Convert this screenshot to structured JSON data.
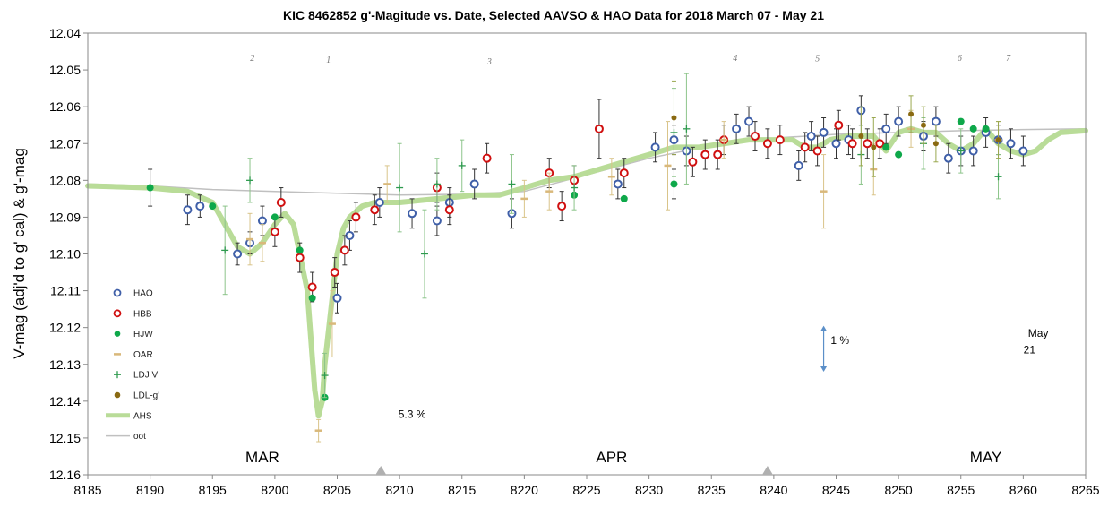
{
  "chart_data": {
    "type": "scatter",
    "title": "KIC 8462852 g'-Magitude vs. Date, Selected AAVSO & HAO Data for 2018 March 07 - May 21",
    "xlabel": "",
    "ylabel": "V-mag (adj'd to g' cal) & g'-mag",
    "xlim": [
      8185,
      8265
    ],
    "ylim": [
      12.04,
      12.16
    ],
    "y_reversed": true,
    "grid": false,
    "legend_position": "left-bottom",
    "x_ticks": [
      "8185",
      "8190",
      "8195",
      "8200",
      "8205",
      "8210",
      "8215",
      "8220",
      "8225",
      "8230",
      "8235",
      "8240",
      "8245",
      "8250",
      "8255",
      "8260",
      "8265"
    ],
    "y_ticks": [
      "12.04",
      "12.05",
      "12.06",
      "12.07",
      "12.08",
      "12.09",
      "12.10",
      "12.11",
      "12.12",
      "12.13",
      "12.14",
      "12.15",
      "12.16"
    ],
    "month_labels": [
      {
        "text": "MAR",
        "x": 8199
      },
      {
        "text": "APR",
        "x": 8227
      },
      {
        "text": "MAY",
        "x": 8257
      }
    ],
    "month_markers": [
      8208.5,
      8239.5
    ],
    "event_labels": [
      {
        "text": "2",
        "x": 8198.2,
        "y": 12.0475
      },
      {
        "text": "1",
        "x": 8204.3,
        "y": 12.048
      },
      {
        "text": "3",
        "x": 8217.2,
        "y": 12.0485
      },
      {
        "text": "4",
        "x": 8236.9,
        "y": 12.0475
      },
      {
        "text": "5",
        "x": 8243.5,
        "y": 12.0477
      },
      {
        "text": "6",
        "x": 8254.9,
        "y": 12.0475
      },
      {
        "text": "7",
        "x": 8258.8,
        "y": 12.0475
      }
    ],
    "annotations": [
      {
        "text": "5.3 %",
        "x": 8211,
        "y": 12.1445
      },
      {
        "text": "1 %",
        "x": 8245.3,
        "y": 12.1245
      },
      {
        "text": "May",
        "x": 8261.2,
        "y": 12.1225
      },
      {
        "text": "21",
        "x": 8260.5,
        "y": 12.127
      }
    ],
    "scale_arrow": {
      "x": 8244,
      "y1": 12.1195,
      "y2": 12.132
    },
    "series": [
      {
        "name": "HAO",
        "marker": "open-circle",
        "color": "#3f5fa8",
        "points": [
          [
            8193,
            12.088,
            0.004
          ],
          [
            8194,
            12.087,
            0.003
          ],
          [
            8197,
            12.1,
            0.003
          ],
          [
            8198,
            12.097,
            0.003
          ],
          [
            8199,
            12.091,
            0.004
          ],
          [
            8205,
            12.112,
            0.004
          ],
          [
            8206,
            12.095,
            0.004
          ],
          [
            8208.4,
            12.086,
            0.004
          ],
          [
            8211,
            12.089,
            0.004
          ],
          [
            8213,
            12.091,
            0.004
          ],
          [
            8214,
            12.086,
            0.004
          ],
          [
            8216,
            12.081,
            0.004
          ],
          [
            8219,
            12.089,
            0.004
          ],
          [
            8227.5,
            12.081,
            0.004
          ],
          [
            8230.5,
            12.071,
            0.004
          ],
          [
            8232,
            12.069,
            0.004
          ],
          [
            8233,
            12.072,
            0.004
          ],
          [
            8237,
            12.066,
            0.004
          ],
          [
            8238,
            12.064,
            0.004
          ],
          [
            8242,
            12.076,
            0.004
          ],
          [
            8243,
            12.068,
            0.004
          ],
          [
            8244,
            12.067,
            0.004
          ],
          [
            8245,
            12.07,
            0.004
          ],
          [
            8246,
            12.069,
            0.004
          ],
          [
            8247,
            12.061,
            0.004
          ],
          [
            8249,
            12.066,
            0.004
          ],
          [
            8250,
            12.064,
            0.004
          ],
          [
            8252,
            12.068,
            0.004
          ],
          [
            8253,
            12.064,
            0.004
          ],
          [
            8254,
            12.074,
            0.004
          ],
          [
            8255,
            12.072,
            0.004
          ],
          [
            8256,
            12.072,
            0.004
          ],
          [
            8257,
            12.067,
            0.004
          ],
          [
            8258,
            12.069,
            0.004
          ],
          [
            8259,
            12.07,
            0.004
          ],
          [
            8260,
            12.072,
            0.004
          ]
        ]
      },
      {
        "name": "HBB",
        "marker": "open-circle",
        "color": "#d01010",
        "points": [
          [
            8200,
            12.094,
            0.004
          ],
          [
            8200.5,
            12.086,
            0.004
          ],
          [
            8202,
            12.101,
            0.004
          ],
          [
            8203,
            12.109,
            0.004
          ],
          [
            8204.8,
            12.105,
            0.004
          ],
          [
            8205.6,
            12.099,
            0.004
          ],
          [
            8206.5,
            12.09,
            0.004
          ],
          [
            8208,
            12.088,
            0.004
          ],
          [
            8213,
            12.082,
            0.004
          ],
          [
            8214,
            12.088,
            0.004
          ],
          [
            8217,
            12.074,
            0.004
          ],
          [
            8222,
            12.078,
            0.004
          ],
          [
            8223,
            12.087,
            0.004
          ],
          [
            8224,
            12.08,
            0.004
          ],
          [
            8226,
            12.066,
            0.008
          ],
          [
            8228,
            12.078,
            0.004
          ],
          [
            8233.5,
            12.075,
            0.004
          ],
          [
            8234.5,
            12.073,
            0.004
          ],
          [
            8235.5,
            12.073,
            0.004
          ],
          [
            8236,
            12.069,
            0.004
          ],
          [
            8238.5,
            12.068,
            0.004
          ],
          [
            8239.5,
            12.07,
            0.004
          ],
          [
            8240.5,
            12.069,
            0.004
          ],
          [
            8242.5,
            12.071,
            0.004
          ],
          [
            8243.5,
            12.072,
            0.004
          ],
          [
            8245.2,
            12.065,
            0.004
          ],
          [
            8246.3,
            12.07,
            0.004
          ],
          [
            8247.5,
            12.07,
            0.004
          ],
          [
            8248.5,
            12.07,
            0.004
          ]
        ]
      },
      {
        "name": "HJW",
        "marker": "filled-circle",
        "color": "#0ea84a",
        "points": [
          [
            8190,
            12.082,
            0.005
          ],
          [
            8195,
            12.087,
            0
          ],
          [
            8200,
            12.09,
            0
          ],
          [
            8202,
            12.099,
            0
          ],
          [
            8203,
            12.112,
            0
          ],
          [
            8204,
            12.139,
            0
          ],
          [
            8224,
            12.084,
            0
          ],
          [
            8228,
            12.085,
            0
          ],
          [
            8232,
            12.081,
            0.004
          ],
          [
            8249,
            12.071,
            0
          ],
          [
            8250,
            12.073,
            0
          ],
          [
            8255,
            12.064,
            0
          ],
          [
            8256,
            12.066,
            0
          ],
          [
            8257,
            12.066,
            0
          ]
        ]
      },
      {
        "name": "OAR",
        "marker": "dash",
        "color": "#d9b87a",
        "points": [
          [
            8198,
            12.096,
            0.007
          ],
          [
            8199,
            12.097,
            0.005
          ],
          [
            8203.5,
            12.148,
            0.003
          ],
          [
            8204.6,
            12.119,
            0.009
          ],
          [
            8209,
            12.081,
            0.005
          ],
          [
            8220,
            12.085,
            0.005
          ],
          [
            8222,
            12.083,
            0.005
          ],
          [
            8227,
            12.079,
            0.005
          ],
          [
            8231.5,
            12.076,
            0.012
          ],
          [
            8236,
            12.069,
            0.005
          ],
          [
            8244,
            12.083,
            0.01
          ],
          [
            8248,
            12.077,
            0.007
          ],
          [
            8251,
            12.066,
            0.005
          ],
          [
            8258,
            12.069,
            0.005
          ]
        ]
      },
      {
        "name": "LDJ V",
        "marker": "plus",
        "color": "#2e9a4e",
        "points": [
          [
            8196,
            12.099,
            0.012
          ],
          [
            8198,
            12.08,
            0.006
          ],
          [
            8204,
            12.133,
            0.006
          ],
          [
            8210,
            12.082,
            0.012
          ],
          [
            8212,
            12.1,
            0.012
          ],
          [
            8213,
            12.081,
            0.007
          ],
          [
            8215,
            12.076,
            0.007
          ],
          [
            8219,
            12.081,
            0.008
          ],
          [
            8224,
            12.082,
            0.006
          ],
          [
            8232,
            12.067,
            0.012
          ],
          [
            8233,
            12.066,
            0.015
          ],
          [
            8247,
            12.073,
            0.008
          ],
          [
            8252,
            12.07,
            0.007
          ],
          [
            8255,
            12.072,
            0.006
          ],
          [
            8258,
            12.079,
            0.006
          ]
        ]
      },
      {
        "name": "LDL-g'",
        "marker": "filled-circle",
        "color": "#8a6a12",
        "points": [
          [
            8232,
            12.063,
            0.01
          ],
          [
            8247,
            12.068,
            0.008
          ],
          [
            8248,
            12.071,
            0.008
          ],
          [
            8251,
            12.062,
            0.005
          ],
          [
            8252,
            12.065,
            0.005
          ],
          [
            8253,
            12.07,
            0.005
          ],
          [
            8258,
            12.069,
            0.005
          ]
        ]
      }
    ],
    "lines": [
      {
        "name": "AHS",
        "color": "#b9dc98",
        "points": [
          [
            8185,
            12.0815
          ],
          [
            8190,
            12.082
          ],
          [
            8193,
            12.083
          ],
          [
            8195,
            12.086
          ],
          [
            8196,
            12.092
          ],
          [
            8197,
            12.098
          ],
          [
            8198,
            12.1
          ],
          [
            8199,
            12.097
          ],
          [
            8200,
            12.092
          ],
          [
            8200.8,
            12.089
          ],
          [
            8201.5,
            12.092
          ],
          [
            8202,
            12.1
          ],
          [
            8202.6,
            12.11
          ],
          [
            8203,
            12.128
          ],
          [
            8203.2,
            12.137
          ],
          [
            8203.5,
            12.144
          ],
          [
            8203.8,
            12.14
          ],
          [
            8204,
            12.13
          ],
          [
            8204.5,
            12.115
          ],
          [
            8205,
            12.1
          ],
          [
            8205.5,
            12.093
          ],
          [
            8206,
            12.09
          ],
          [
            8207,
            12.087
          ],
          [
            8208,
            12.086
          ],
          [
            8210,
            12.086
          ],
          [
            8213,
            12.085
          ],
          [
            8216,
            12.084
          ],
          [
            8218,
            12.084
          ],
          [
            8220,
            12.082
          ],
          [
            8222,
            12.08
          ],
          [
            8224,
            12.079
          ],
          [
            8226,
            12.077
          ],
          [
            8228,
            12.075
          ],
          [
            8230,
            12.073
          ],
          [
            8232,
            12.071
          ],
          [
            8234,
            12.071
          ],
          [
            8236,
            12.07
          ],
          [
            8238,
            12.069
          ],
          [
            8240,
            12.069
          ],
          [
            8241.5,
            12.069
          ],
          [
            8242.5,
            12.071
          ],
          [
            8243.5,
            12.071
          ],
          [
            8244.5,
            12.069
          ],
          [
            8246,
            12.068
          ],
          [
            8248,
            12.068
          ],
          [
            8249,
            12.072
          ],
          [
            8250,
            12.067
          ],
          [
            8251,
            12.066
          ],
          [
            8252,
            12.067
          ],
          [
            8253,
            12.067
          ],
          [
            8254,
            12.07
          ],
          [
            8255,
            12.072
          ],
          [
            8256,
            12.07
          ],
          [
            8257,
            12.066
          ],
          [
            8258,
            12.07
          ],
          [
            8259,
            12.072
          ],
          [
            8260,
            12.073
          ],
          [
            8261,
            12.072
          ],
          [
            8262,
            12.069
          ],
          [
            8263,
            12.067
          ],
          [
            8265,
            12.0665
          ]
        ]
      },
      {
        "name": "oot",
        "color": "#c0c0c0",
        "points": [
          [
            8185,
            12.081
          ],
          [
            8190,
            12.0815
          ],
          [
            8195,
            12.0825
          ],
          [
            8200,
            12.083
          ],
          [
            8205,
            12.0835
          ],
          [
            8210,
            12.084
          ],
          [
            8215,
            12.0838
          ],
          [
            8220,
            12.083
          ],
          [
            8225,
            12.0785
          ],
          [
            8230,
            12.074
          ],
          [
            8235,
            12.0705
          ],
          [
            8240,
            12.0685
          ],
          [
            8245,
            12.0675
          ],
          [
            8250,
            12.067
          ],
          [
            8255,
            12.0665
          ],
          [
            8260,
            12.0662
          ],
          [
            8265,
            12.066
          ]
        ]
      }
    ]
  }
}
